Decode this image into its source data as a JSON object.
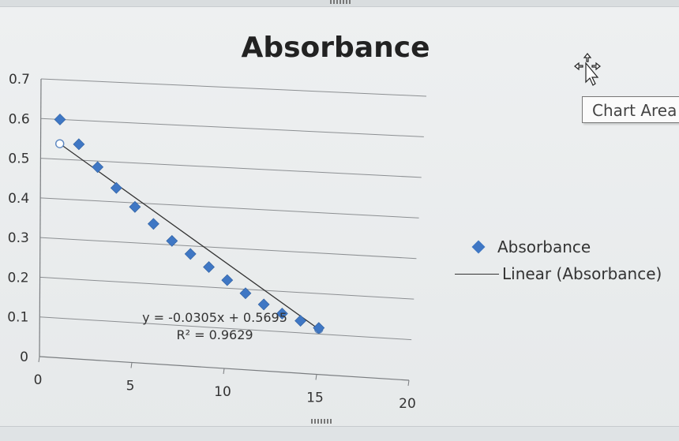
{
  "tooltip": {
    "label": "Chart Area"
  },
  "cursor": {
    "icon": "move-cursor-icon"
  },
  "chart_data": {
    "type": "scatter",
    "title": "Absorbance",
    "xlabel": "",
    "ylabel": "",
    "xlim": [
      0,
      20
    ],
    "ylim": [
      0,
      0.7
    ],
    "x_ticks": [
      "0",
      "5",
      "10",
      "15",
      "20"
    ],
    "y_ticks": [
      "0",
      "0.1",
      "0.2",
      "0.3",
      "0.4",
      "0.5",
      "0.6",
      "0.7"
    ],
    "grid": "horizontal",
    "legend_position": "right",
    "series": [
      {
        "name": "Absorbance",
        "marker": "diamond",
        "color": "#3f77c4",
        "x": [
          1,
          2,
          3,
          4,
          5,
          6,
          7,
          8,
          9,
          10,
          11,
          12,
          13,
          14,
          15
        ],
        "y": [
          0.6,
          0.54,
          0.485,
          0.435,
          0.39,
          0.35,
          0.31,
          0.28,
          0.25,
          0.22,
          0.19,
          0.165,
          0.145,
          0.13,
          0.115
        ]
      }
    ],
    "trendline": {
      "name": "Linear (Absorbance)",
      "type": "linear",
      "slope": -0.0305,
      "intercept": 0.5695,
      "x_range": [
        1,
        15
      ],
      "color": "#333333",
      "equation_label": "y = -0.0305x + 0.5695",
      "r2_label": "R² = 0.9629"
    }
  }
}
